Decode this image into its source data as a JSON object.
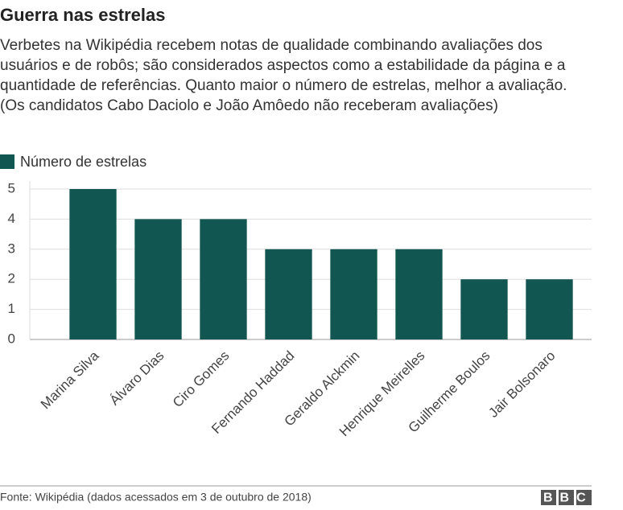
{
  "chart_data": {
    "type": "bar",
    "title": "Guerra nas estrelas",
    "subtitle": "Verbetes na Wikipédia recebem notas de qualidade combinando avaliações dos usuários e de robôs; são considerados aspectos como a estabilidade da página e a quantidade de referências. Quanto maior o número de estrelas, melhor a avaliação. (Os candidatos Cabo Daciolo e João Amôedo não receberam avaliações)",
    "categories": [
      "Marina Silva",
      "Álvaro Dias",
      "Ciro Gomes",
      "Fernando Haddad",
      "Geraldo Alckmin",
      "Henrique Meirelles",
      "Guilherme Boulos",
      "Jair Bolsonaro"
    ],
    "series": [
      {
        "name": "Número de estrelas",
        "color": "#115650",
        "values": [
          5,
          4,
          4,
          3,
          3,
          3,
          2,
          2
        ]
      }
    ],
    "ylim": [
      0,
      5
    ],
    "yticks": [
      0,
      1,
      2,
      3,
      4,
      5
    ],
    "grid": true,
    "legend": "top-left",
    "source": "Fonte: Wikipédia (dados acessados em 3 de outubro de 2018)",
    "logo": "BBC"
  }
}
